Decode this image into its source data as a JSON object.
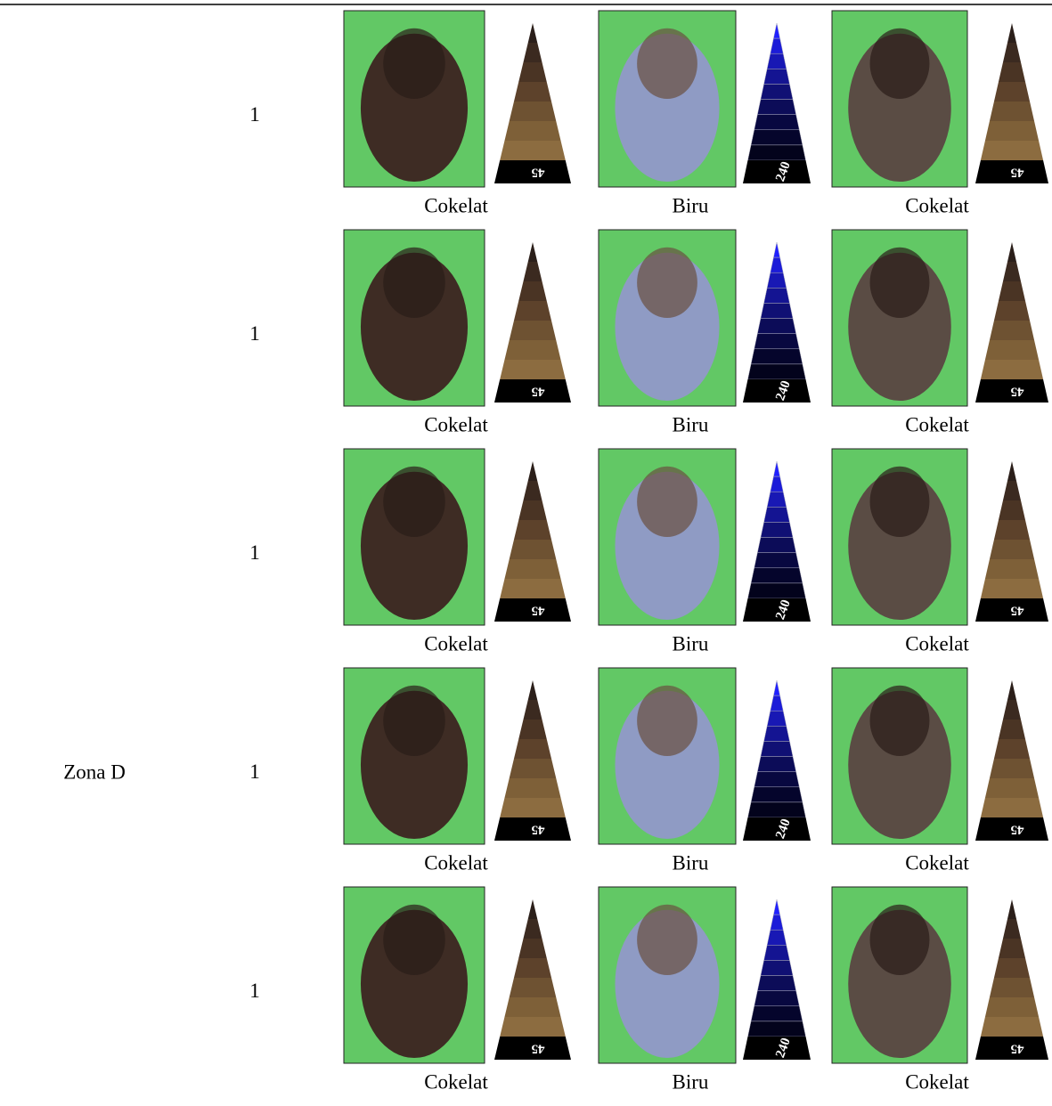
{
  "zone": "Zona D",
  "rows": [
    {
      "number": "1",
      "cells": [
        {
          "label": "Cokelat",
          "scale": "45"
        },
        {
          "label": "Biru",
          "scale": "240"
        },
        {
          "label": "Cokelat",
          "scale": "45"
        }
      ]
    },
    {
      "number": "1",
      "cells": [
        {
          "label": "Cokelat",
          "scale": "45"
        },
        {
          "label": "Biru",
          "scale": "240"
        },
        {
          "label": "Cokelat",
          "scale": "45"
        }
      ]
    },
    {
      "number": "1",
      "cells": [
        {
          "label": "Cokelat",
          "scale": "45"
        },
        {
          "label": "Biru",
          "scale": "240"
        },
        {
          "label": "Cokelat",
          "scale": "45"
        }
      ]
    },
    {
      "number": "1",
      "cells": [
        {
          "label": "Cokelat",
          "scale": "45"
        },
        {
          "label": "Biru",
          "scale": "240"
        },
        {
          "label": "Cokelat",
          "scale": "45"
        }
      ]
    },
    {
      "number": "1",
      "cells": [
        {
          "label": "Cokelat",
          "scale": "45"
        },
        {
          "label": "Biru",
          "scale": "240"
        },
        {
          "label": "Cokelat",
          "scale": "45"
        }
      ]
    }
  ]
}
